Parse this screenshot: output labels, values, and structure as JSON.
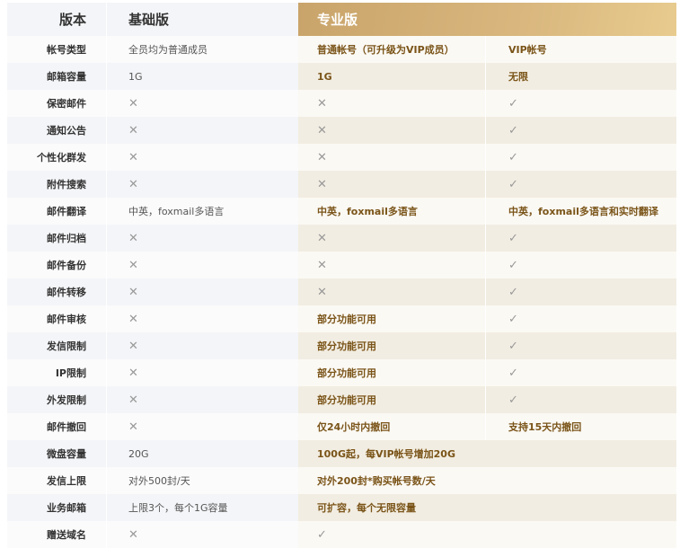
{
  "header": {
    "label": "版本",
    "basic": "基础版",
    "pro": "专业版"
  },
  "colors": {
    "gold_start": "#c9a46a",
    "gold_end": "#e8cb8e",
    "pro_text": "#7a5418"
  },
  "icons": {
    "x": "cross-icon",
    "check": "check-icon"
  },
  "rows": [
    {
      "label": "帐号类型",
      "basic": "全员均为普通成员",
      "pro": "普通帐号（可升级为VIP成员）",
      "vip": "VIP帐号"
    },
    {
      "label": "邮箱容量",
      "basic": "1G",
      "pro": "1G",
      "vip": "无限"
    },
    {
      "label": "保密邮件",
      "basic": "x",
      "pro": "x",
      "vip": "check"
    },
    {
      "label": "通知公告",
      "basic": "x",
      "pro": "x",
      "vip": "check"
    },
    {
      "label": "个性化群发",
      "basic": "x",
      "pro": "x",
      "vip": "check"
    },
    {
      "label": "附件搜索",
      "basic": "x",
      "pro": "x",
      "vip": "check"
    },
    {
      "label": "邮件翻译",
      "basic": "中英，foxmail多语言",
      "pro": "中英，foxmail多语言",
      "vip": "中英，foxmail多语言和实时翻译"
    },
    {
      "label": "邮件归档",
      "basic": "x",
      "pro": "x",
      "vip": "check"
    },
    {
      "label": "邮件备份",
      "basic": "x",
      "pro": "x",
      "vip": "check"
    },
    {
      "label": "邮件转移",
      "basic": "x",
      "pro": "x",
      "vip": "check"
    },
    {
      "label": "邮件审核",
      "basic": "x",
      "pro": "部分功能可用",
      "vip": "check"
    },
    {
      "label": "发信限制",
      "basic": "x",
      "pro": "部分功能可用",
      "vip": "check"
    },
    {
      "label": "IP限制",
      "basic": "x",
      "pro": "部分功能可用",
      "vip": "check"
    },
    {
      "label": "外发限制",
      "basic": "x",
      "pro": "部分功能可用",
      "vip": "check"
    },
    {
      "label": "邮件撤回",
      "basic": "x",
      "pro": "仅24小时内撤回",
      "vip": "支持15天内撤回"
    },
    {
      "label": "微盘容量",
      "basic": "20G",
      "pro_span": "100G起，每VIP帐号增加20G"
    },
    {
      "label": "发信上限",
      "basic": "对外500封/天",
      "pro_span": "对外200封*购买帐号数/天"
    },
    {
      "label": "业务邮箱",
      "basic": "上限3个，每个1G容量",
      "pro_span": "可扩容，每个无限容量"
    },
    {
      "label": "赠送域名",
      "basic": "x",
      "pro_span": "check"
    }
  ]
}
